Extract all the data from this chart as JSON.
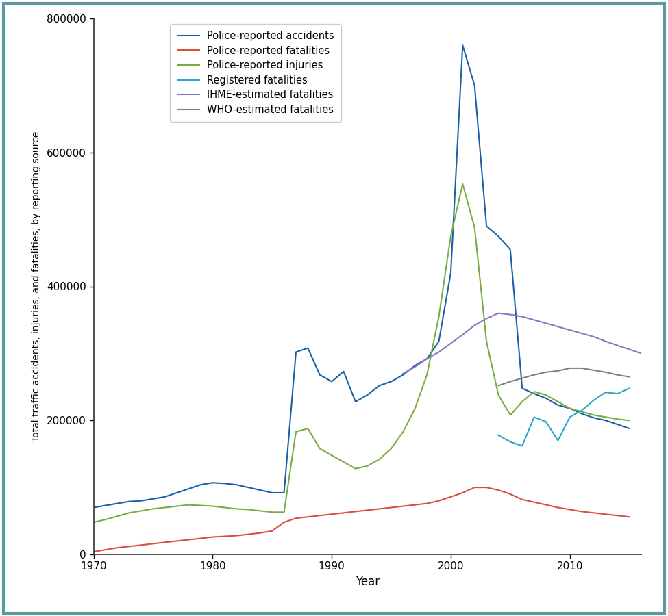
{
  "title": "",
  "xlabel": "Year",
  "ylabel": "Total traffic accidents, injuries, and fatalities, by reporting source",
  "ylim": [
    0,
    800000
  ],
  "xlim": [
    1970,
    2016
  ],
  "yticks": [
    0,
    200000,
    400000,
    600000,
    800000
  ],
  "xticks": [
    1970,
    1980,
    1990,
    2000,
    2010
  ],
  "background_color": "#ffffff",
  "border_color": "#5b9aa0",
  "series": [
    {
      "label": "Police-reported accidents",
      "color": "#1a5fa8",
      "linewidth": 1.5,
      "x": [
        1970,
        1971,
        1972,
        1973,
        1974,
        1975,
        1976,
        1977,
        1978,
        1979,
        1980,
        1981,
        1982,
        1983,
        1984,
        1985,
        1986,
        1987,
        1988,
        1989,
        1990,
        1991,
        1992,
        1993,
        1994,
        1995,
        1996,
        1997,
        1998,
        1999,
        2000,
        2001,
        2002,
        2003,
        2004,
        2005,
        2006,
        2007,
        2008,
        2009,
        2010,
        2011,
        2012,
        2013,
        2014,
        2015
      ],
      "y": [
        70000,
        73000,
        76000,
        79000,
        80000,
        83000,
        86000,
        92000,
        98000,
        104000,
        107000,
        106000,
        104000,
        100000,
        96000,
        92000,
        92000,
        302000,
        308000,
        268000,
        258000,
        273000,
        228000,
        238000,
        252000,
        258000,
        268000,
        282000,
        292000,
        318000,
        420000,
        760000,
        700000,
        490000,
        475000,
        455000,
        248000,
        240000,
        233000,
        223000,
        218000,
        210000,
        204000,
        200000,
        194000,
        188000
      ]
    },
    {
      "label": "Police-reported fatalities",
      "color": "#d94f3d",
      "linewidth": 1.5,
      "x": [
        1970,
        1971,
        1972,
        1973,
        1974,
        1975,
        1976,
        1977,
        1978,
        1979,
        1980,
        1981,
        1982,
        1983,
        1984,
        1985,
        1986,
        1987,
        1988,
        1989,
        1990,
        1991,
        1992,
        1993,
        1994,
        1995,
        1996,
        1997,
        1998,
        1999,
        2000,
        2001,
        2002,
        2003,
        2004,
        2005,
        2006,
        2007,
        2008,
        2009,
        2010,
        2011,
        2012,
        2013,
        2014,
        2015
      ],
      "y": [
        4000,
        7000,
        10000,
        12000,
        14000,
        16000,
        18000,
        20000,
        22000,
        24000,
        26000,
        27000,
        28000,
        30000,
        32000,
        35000,
        48000,
        54000,
        56000,
        58000,
        60000,
        62000,
        64000,
        66000,
        68000,
        70000,
        72000,
        74000,
        76000,
        80000,
        86000,
        92000,
        100000,
        100000,
        96000,
        90000,
        82000,
        78000,
        74000,
        70000,
        67000,
        64000,
        62000,
        60000,
        58000,
        56000
      ]
    },
    {
      "label": "Police-reported injuries",
      "color": "#7aab43",
      "linewidth": 1.5,
      "x": [
        1970,
        1971,
        1972,
        1973,
        1974,
        1975,
        1976,
        1977,
        1978,
        1979,
        1980,
        1981,
        1982,
        1983,
        1984,
        1985,
        1986,
        1987,
        1988,
        1989,
        1990,
        1991,
        1992,
        1993,
        1994,
        1995,
        1996,
        1997,
        1998,
        1999,
        2000,
        2001,
        2002,
        2003,
        2004,
        2005,
        2006,
        2007,
        2008,
        2009,
        2010,
        2011,
        2012,
        2013,
        2014,
        2015
      ],
      "y": [
        48000,
        52000,
        57000,
        62000,
        65000,
        68000,
        70000,
        72000,
        74000,
        73000,
        72000,
        70000,
        68000,
        67000,
        65000,
        63000,
        63000,
        183000,
        188000,
        158000,
        148000,
        138000,
        128000,
        132000,
        142000,
        158000,
        183000,
        218000,
        268000,
        355000,
        475000,
        553000,
        488000,
        318000,
        238000,
        208000,
        228000,
        243000,
        238000,
        228000,
        218000,
        213000,
        208000,
        205000,
        202000,
        200000
      ]
    },
    {
      "label": "Registered fatalities",
      "color": "#29a9c5",
      "linewidth": 1.5,
      "x": [
        2004,
        2005,
        2006,
        2007,
        2008,
        2009,
        2010,
        2011,
        2012,
        2013,
        2014,
        2015
      ],
      "y": [
        178000,
        168000,
        162000,
        205000,
        198000,
        170000,
        205000,
        215000,
        230000,
        242000,
        240000,
        248000
      ]
    },
    {
      "label": "IHME-estimated fatalities",
      "color": "#8878c3",
      "linewidth": 1.5,
      "x": [
        1996,
        1997,
        1998,
        1999,
        2000,
        2001,
        2002,
        2003,
        2004,
        2005,
        2006,
        2007,
        2008,
        2009,
        2010,
        2011,
        2012,
        2013,
        2014,
        2015,
        2016
      ],
      "y": [
        270000,
        280000,
        292000,
        302000,
        315000,
        328000,
        342000,
        352000,
        360000,
        358000,
        355000,
        350000,
        345000,
        340000,
        335000,
        330000,
        325000,
        318000,
        312000,
        306000,
        300000
      ]
    },
    {
      "label": "WHO-estimated fatalities",
      "color": "#808080",
      "linewidth": 1.5,
      "x": [
        2004,
        2005,
        2006,
        2007,
        2008,
        2009,
        2010,
        2011,
        2012,
        2013,
        2014,
        2015
      ],
      "y": [
        252000,
        258000,
        263000,
        268000,
        272000,
        274000,
        278000,
        278000,
        275000,
        272000,
        268000,
        265000
      ]
    }
  ]
}
